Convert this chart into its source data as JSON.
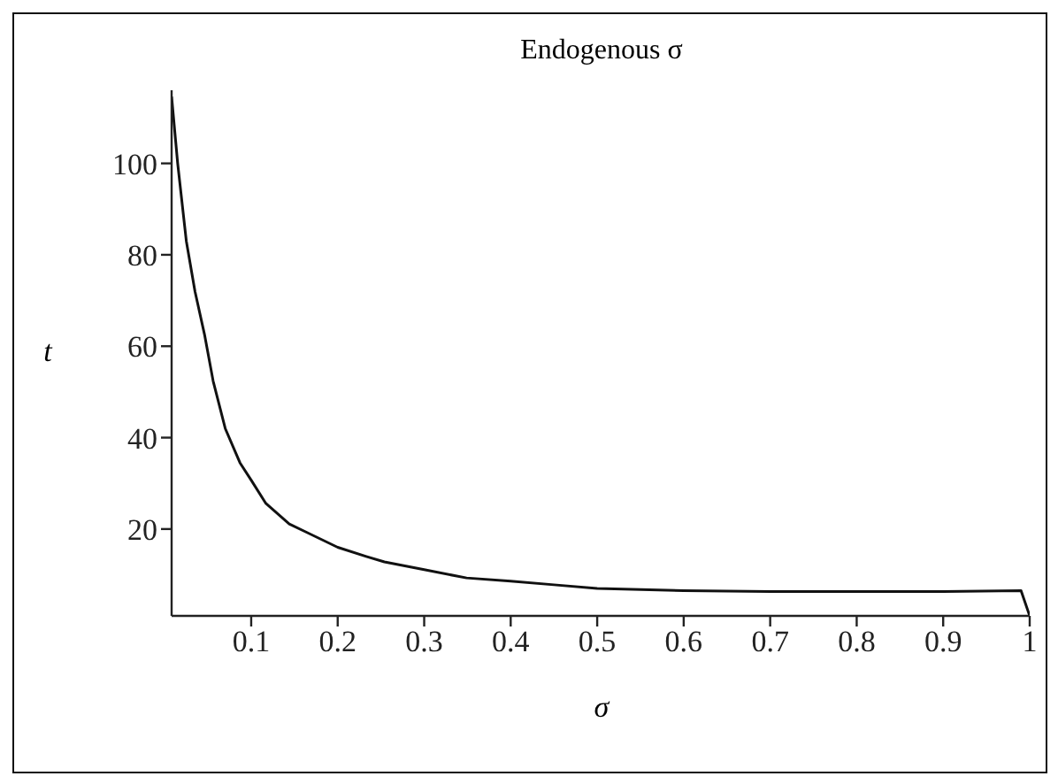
{
  "chart_data": {
    "type": "line",
    "title": "Endogenous σ",
    "xlabel": "σ",
    "ylabel": "t",
    "x": [
      0.008,
      0.015,
      0.025,
      0.035,
      0.046,
      0.056,
      0.07,
      0.087,
      0.1,
      0.117,
      0.144,
      0.165,
      0.2,
      0.233,
      0.254,
      0.3,
      0.349,
      0.4,
      0.45,
      0.5,
      0.6,
      0.7,
      0.8,
      0.9,
      0.99,
      1.0
    ],
    "series": [
      {
        "color": "#111111",
        "values": [
          114.6,
          100,
          83,
          72,
          62.6,
          52.4,
          42,
          34.5,
          30.7,
          25.6,
          21.1,
          19.2,
          16,
          14,
          12.8,
          11.1,
          9.3,
          8.6,
          7.8,
          7.0,
          6.5,
          6.3,
          6.3,
          6.3,
          6.5,
          1
        ]
      }
    ],
    "xlim": [
      0.008,
      1
    ],
    "xticks": [
      0.1,
      0.2,
      0.3,
      0.4,
      0.5,
      0.6,
      0.7,
      0.8,
      0.9,
      1
    ],
    "ylim": [
      1,
      116
    ],
    "yticks": [
      20,
      40,
      60,
      80,
      100
    ],
    "grid": false,
    "legend": false,
    "marker": "none",
    "line_style": "solid"
  }
}
